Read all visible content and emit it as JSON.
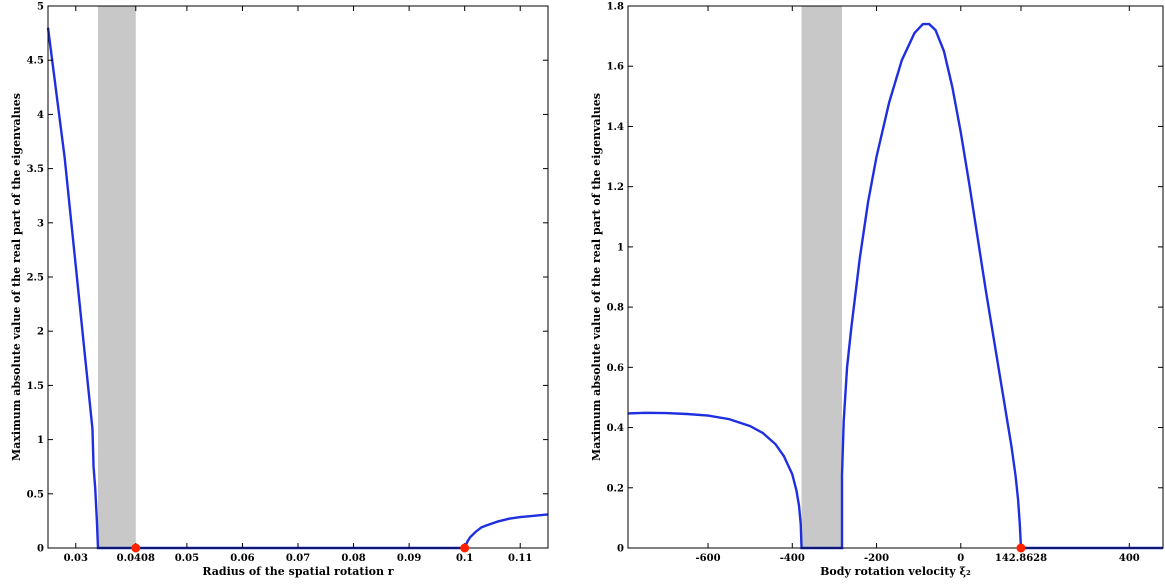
{
  "chart_data": [
    {
      "type": "line",
      "xlabel": "Radius of the spatial rotation r",
      "ylabel": "Maximum absolute value of the real part of the eigenvalues",
      "xlim": [
        0.025,
        0.115
      ],
      "ylim": [
        0,
        5
      ],
      "xticks": [
        0.03,
        0.0408,
        0.05,
        0.06,
        0.07,
        0.08,
        0.09,
        0.1,
        0.11
      ],
      "xtick_labels": [
        "0.03",
        "0.0408",
        "0.05",
        "0.06",
        "0.07",
        "0.08",
        "0.09",
        "0.1",
        "0.11"
      ],
      "yticks": [
        0,
        0.5,
        1,
        1.5,
        2,
        2.5,
        3,
        3.5,
        4,
        4.5,
        5
      ],
      "ytick_labels": [
        "0",
        "0.5",
        "1",
        "1.5",
        "2",
        "2.5",
        "3",
        "3.5",
        "4",
        "4.5",
        "5"
      ],
      "shaded_band": [
        0.034,
        0.0408
      ],
      "series": [
        {
          "x": [
            0.025,
            0.026,
            0.027,
            0.028,
            0.029,
            0.03,
            0.031,
            0.032,
            0.033,
            0.0332,
            0.0335,
            0.0338,
            0.034,
            0.037,
            0.045,
            0.06,
            0.08,
            0.1,
            0.1005,
            0.101,
            0.102,
            0.103,
            0.104,
            0.106,
            0.108,
            0.11,
            0.112,
            0.115
          ],
          "y": [
            4.8,
            4.4,
            4.0,
            3.6,
            3.1,
            2.6,
            2.1,
            1.6,
            1.1,
            0.75,
            0.55,
            0.25,
            0,
            0,
            0,
            0,
            0,
            0,
            0.06,
            0.1,
            0.15,
            0.19,
            0.21,
            0.245,
            0.27,
            0.285,
            0.295,
            0.31
          ]
        }
      ],
      "markers": [
        {
          "x": 0.0408,
          "y": 0
        },
        {
          "x": 0.1,
          "y": 0
        }
      ],
      "grid": false
    },
    {
      "type": "line",
      "xlabel": "Body rotation velocity ξ₂",
      "ylabel": "Maximum absolute value of the real part of the eigenvalues",
      "xlim": [
        -790,
        480
      ],
      "ylim": [
        0,
        1.8
      ],
      "xticks": [
        -600,
        -400,
        -200,
        0,
        142.8628,
        400
      ],
      "xtick_labels": [
        "-600",
        "-400",
        "-200",
        "0",
        "142.8628",
        "400"
      ],
      "yticks": [
        0,
        0.2,
        0.4,
        0.6,
        0.8,
        1,
        1.2,
        1.4,
        1.6,
        1.8
      ],
      "ytick_labels": [
        "0",
        "0.2",
        "0.4",
        "0.6",
        "0.8",
        "1",
        "1.2",
        "1.4",
        "1.6",
        "1.8"
      ],
      "shaded_band": [
        -378,
        -282
      ],
      "series": [
        {
          "x": [
            -790,
            -750,
            -700,
            -650,
            -600,
            -550,
            -500,
            -470,
            -440,
            -420,
            -400,
            -390,
            -384,
            -380,
            -378,
            -282,
            -282,
            -278,
            -270,
            -260,
            -240,
            -220,
            -200,
            -170,
            -140,
            -110,
            -90,
            -75,
            -60,
            -40,
            -20,
            0,
            20,
            40,
            60,
            80,
            100,
            120,
            130,
            136,
            140,
            142.8628,
            200,
            300,
            400,
            480
          ],
          "y": [
            0.447,
            0.449,
            0.448,
            0.445,
            0.44,
            0.428,
            0.405,
            0.382,
            0.345,
            0.305,
            0.245,
            0.19,
            0.14,
            0.08,
            0,
            0,
            0.24,
            0.42,
            0.6,
            0.73,
            0.96,
            1.15,
            1.3,
            1.48,
            1.62,
            1.71,
            1.74,
            1.74,
            1.72,
            1.65,
            1.53,
            1.38,
            1.21,
            1.03,
            0.85,
            0.68,
            0.51,
            0.34,
            0.24,
            0.16,
            0.08,
            0,
            0,
            0,
            0,
            0
          ]
        }
      ],
      "markers": [
        {
          "x": 142.8628,
          "y": 0
        }
      ],
      "grid": false
    }
  ]
}
